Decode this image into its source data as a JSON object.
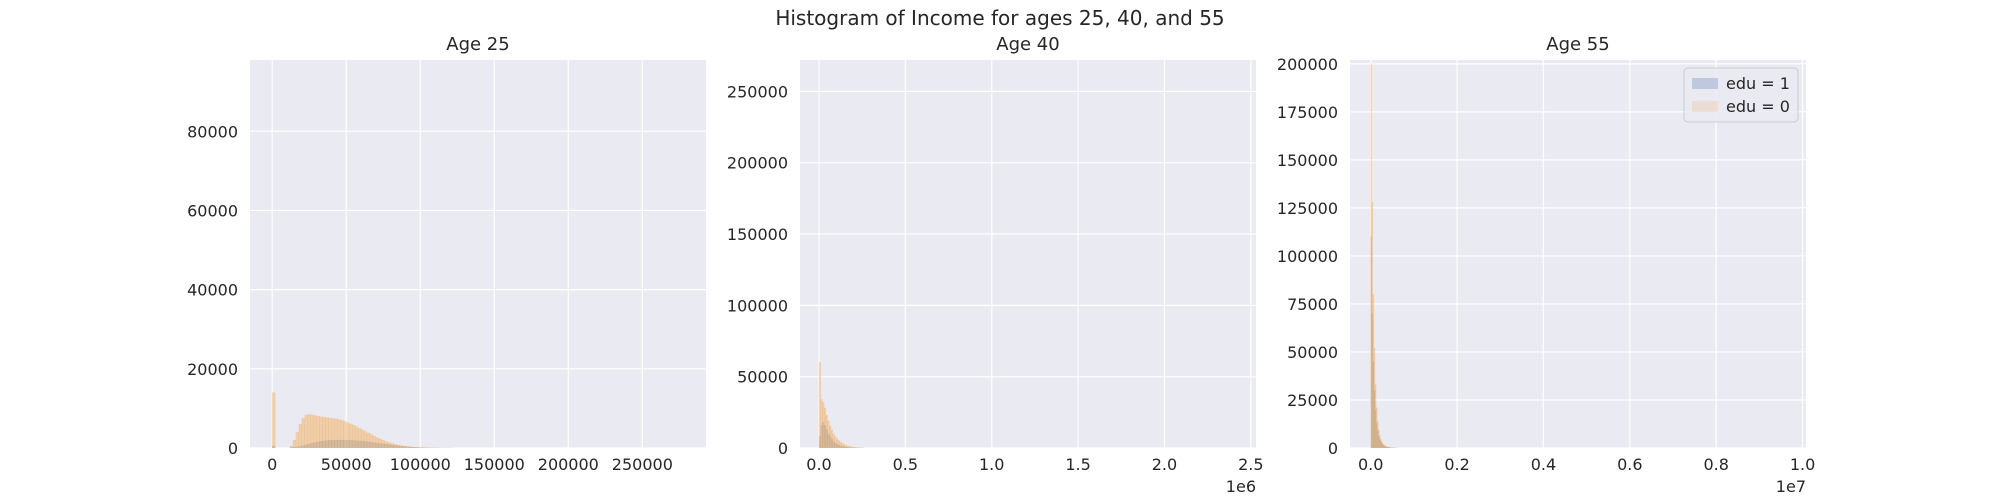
{
  "figure_title": "Histogram of Income for ages 25, 40, and 55",
  "colors": {
    "edu1": "#4c72b0",
    "edu0": "#f5a442",
    "plot_bg": "#eaeaf2",
    "grid": "#ffffff"
  },
  "chart_data": [
    {
      "type": "bar",
      "title": "Age 25",
      "xlim": [
        -15000,
        293000
      ],
      "ylim": [
        0,
        98000
      ],
      "xticks": [
        0,
        50000,
        100000,
        150000,
        200000,
        250000
      ],
      "xtick_labels": [
        "0",
        "50000",
        "100000",
        "150000",
        "200000",
        "250000"
      ],
      "yticks": [
        0,
        20000,
        40000,
        60000,
        80000
      ],
      "ytick_labels": [
        "0",
        "20000",
        "40000",
        "60000",
        "80000"
      ],
      "offset_label": "",
      "bin_width": 2000,
      "series": [
        {
          "name": "edu = 1",
          "x": [
            0,
            2000,
            4000,
            6000,
            8000,
            10000,
            12000,
            14000,
            16000,
            18000,
            20000,
            22000,
            24000,
            26000,
            28000,
            30000,
            32000,
            34000,
            36000,
            38000,
            40000,
            42000,
            44000,
            46000,
            48000,
            50000,
            52000,
            54000,
            56000,
            58000,
            60000,
            62000,
            64000,
            66000,
            68000,
            70000,
            72000,
            74000,
            76000,
            78000,
            80000,
            82000,
            84000,
            86000,
            88000,
            90000,
            92000,
            94000,
            96000,
            98000,
            100000,
            102000,
            104000,
            106000,
            108000,
            110000,
            112000,
            114000,
            116000,
            118000,
            120000
          ],
          "y": [
            500,
            0,
            0,
            0,
            0,
            0,
            100,
            200,
            300,
            400,
            600,
            800,
            1000,
            1200,
            1400,
            1550,
            1700,
            1800,
            1900,
            1950,
            2000,
            2000,
            2000,
            2000,
            2000,
            2000,
            1950,
            1900,
            1850,
            1800,
            1750,
            1650,
            1550,
            1450,
            1350,
            1250,
            1150,
            1050,
            950,
            850,
            750,
            650,
            550,
            470,
            400,
            330,
            270,
            220,
            170,
            130,
            100,
            80,
            60,
            45,
            35,
            25,
            18,
            12,
            8,
            5,
            3
          ]
        },
        {
          "name": "edu = 0",
          "x": [
            0,
            2000,
            4000,
            6000,
            8000,
            10000,
            12000,
            14000,
            16000,
            18000,
            20000,
            22000,
            24000,
            26000,
            28000,
            30000,
            32000,
            34000,
            36000,
            38000,
            40000,
            42000,
            44000,
            46000,
            48000,
            50000,
            52000,
            54000,
            56000,
            58000,
            60000,
            62000,
            64000,
            66000,
            68000,
            70000,
            72000,
            74000,
            76000,
            78000,
            80000,
            82000,
            84000,
            86000,
            88000,
            90000,
            92000,
            94000,
            96000,
            98000,
            100000,
            102000,
            104000,
            106000,
            108000,
            110000,
            112000,
            114000,
            116000,
            118000,
            120000
          ],
          "y": [
            14000,
            0,
            0,
            0,
            0,
            0,
            500,
            2000,
            4000,
            6000,
            7500,
            8300,
            8500,
            8400,
            8200,
            8000,
            7900,
            7800,
            7700,
            7600,
            7500,
            7400,
            7200,
            7000,
            6700,
            6400,
            6100,
            5800,
            5400,
            5000,
            4600,
            4200,
            3800,
            3400,
            3000,
            2650,
            2300,
            1950,
            1650,
            1400,
            1150,
            950,
            780,
            630,
            500,
            400,
            310,
            240,
            185,
            140,
            105,
            78,
            58,
            42,
            30,
            22,
            15,
            10,
            7,
            4,
            2
          ]
        }
      ]
    },
    {
      "type": "bar",
      "title": "Age 40",
      "xlim": [
        -110000,
        2530000
      ],
      "ylim": [
        0,
        272000
      ],
      "xticks": [
        0,
        500000,
        1000000,
        1500000,
        2000000,
        2500000
      ],
      "xtick_labels": [
        "0.0",
        "0.5",
        "1.0",
        "1.5",
        "2.0",
        "2.5"
      ],
      "yticks": [
        0,
        50000,
        100000,
        150000,
        200000,
        250000
      ],
      "ytick_labels": [
        "0",
        "50000",
        "100000",
        "150000",
        "200000",
        "250000"
      ],
      "offset_label": "1e6",
      "bin_width": 10000,
      "series": [
        {
          "name": "edu = 1",
          "x": [
            0,
            10000,
            20000,
            30000,
            40000,
            50000,
            60000,
            70000,
            80000,
            90000,
            100000,
            110000,
            120000,
            130000,
            140000,
            150000,
            160000,
            170000,
            180000,
            190000,
            200000,
            210000,
            220000,
            230000,
            240000,
            250000
          ],
          "y": [
            8000,
            16000,
            18000,
            16000,
            13000,
            10000,
            8000,
            6000,
            4500,
            3500,
            2600,
            2000,
            1500,
            1100,
            800,
            600,
            450,
            330,
            250,
            180,
            130,
            100,
            70,
            50,
            30,
            20
          ]
        },
        {
          "name": "edu = 0",
          "x": [
            0,
            10000,
            20000,
            30000,
            40000,
            50000,
            60000,
            70000,
            80000,
            90000,
            100000,
            110000,
            120000,
            130000,
            140000,
            150000,
            160000,
            170000,
            180000,
            190000,
            200000,
            210000,
            220000,
            230000,
            240000,
            250000
          ],
          "y": [
            60000,
            34000,
            32000,
            28000,
            23000,
            19000,
            15500,
            12500,
            10000,
            8000,
            6500,
            5200,
            4200,
            3300,
            2600,
            2000,
            1600,
            1200,
            900,
            700,
            500,
            380,
            280,
            200,
            140,
            90
          ]
        }
      ]
    },
    {
      "type": "bar",
      "title": "Age 55",
      "xlim": [
        -480000,
        10080000
      ],
      "ylim": [
        0,
        202000
      ],
      "xticks": [
        0,
        2000000,
        4000000,
        6000000,
        8000000,
        10000000
      ],
      "xtick_labels": [
        "0.0",
        "0.2",
        "0.4",
        "0.6",
        "0.8",
        "1.0"
      ],
      "yticks": [
        0,
        25000,
        50000,
        75000,
        100000,
        125000,
        150000,
        175000,
        200000
      ],
      "ytick_labels": [
        "0",
        "25000",
        "50000",
        "75000",
        "100000",
        "125000",
        "150000",
        "175000",
        "200000"
      ],
      "offset_label": "1e7",
      "bin_width": 25000,
      "series": [
        {
          "name": "edu = 1",
          "x": [
            0,
            25000,
            50000,
            75000,
            100000,
            125000,
            150000,
            175000,
            200000,
            225000,
            250000,
            275000,
            300000,
            325000,
            350000,
            375000,
            400000,
            425000,
            450000,
            475000,
            500000,
            525000,
            550000,
            575000,
            600000
          ],
          "y": [
            110000,
            70000,
            45000,
            30000,
            20000,
            13000,
            9000,
            6000,
            4200,
            3000,
            2100,
            1500,
            1100,
            800,
            600,
            450,
            330,
            250,
            180,
            130,
            100,
            70,
            50,
            35,
            25
          ]
        },
        {
          "name": "edu = 0",
          "x": [
            0,
            25000,
            50000,
            75000,
            100000,
            125000,
            150000,
            175000,
            200000,
            225000,
            250000,
            275000,
            300000,
            325000,
            350000,
            375000,
            400000,
            425000,
            450000,
            475000,
            500000,
            525000,
            550000,
            575000,
            600000
          ],
          "y": [
            200000,
            128000,
            80000,
            52000,
            33000,
            21000,
            14000,
            9500,
            6500,
            4500,
            3100,
            2200,
            1500,
            1100,
            800,
            580,
            420,
            300,
            220,
            160,
            110,
            80,
            55,
            38,
            25
          ]
        }
      ],
      "legend": {
        "position": "upper right",
        "entries": [
          "edu = 1",
          "edu = 0"
        ]
      }
    }
  ]
}
